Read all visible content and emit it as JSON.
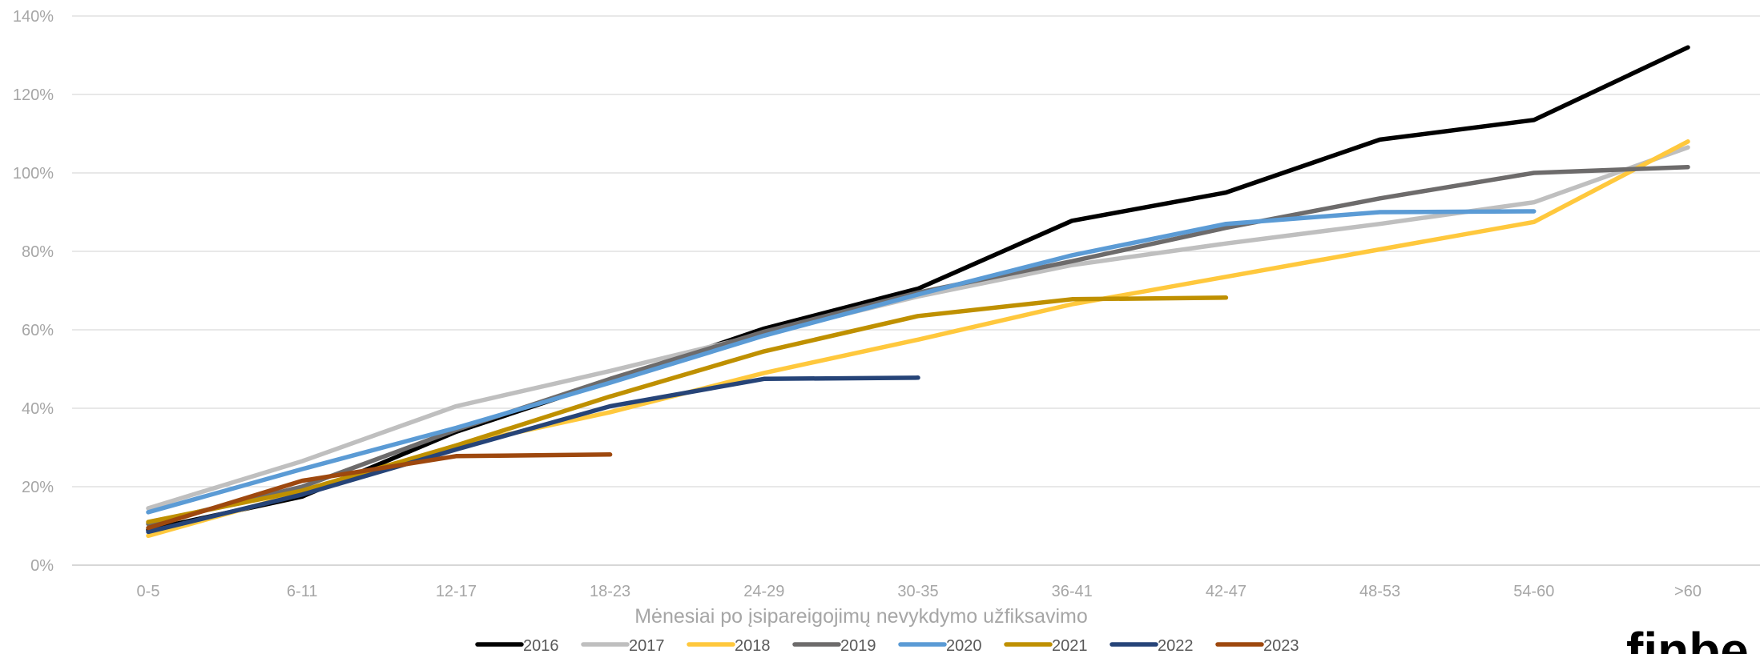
{
  "chart_data": {
    "type": "line",
    "title": "",
    "xlabel": "Mėnesiai po įsipareigojimų nevykdymo užfiksavimo",
    "ylabel": "",
    "categories": [
      "0-5",
      "6-11",
      "12-17",
      "18-23",
      "24-29",
      "30-35",
      "36-41",
      "42-47",
      "48-53",
      "54-60",
      ">60"
    ],
    "ylim": [
      0,
      1.4
    ],
    "yticks": [
      "0%",
      "20%",
      "40%",
      "60%",
      "80%",
      "100%",
      "120%",
      "140%"
    ],
    "grid": true,
    "legend_position": "bottom",
    "series": [
      {
        "name": "2016",
        "color": "#000000",
        "values": [
          0.09,
          0.175,
          0.34,
          0.47,
          0.603,
          0.705,
          0.878,
          0.95,
          1.085,
          1.135,
          1.32
        ]
      },
      {
        "name": "2017",
        "color": "#bfbfbf",
        "values": [
          0.145,
          0.265,
          0.405,
          0.495,
          0.59,
          0.685,
          0.765,
          0.82,
          0.87,
          0.925,
          1.065
        ]
      },
      {
        "name": "2018",
        "color": "#ffc83d",
        "values": [
          0.075,
          0.185,
          0.305,
          0.39,
          0.49,
          0.575,
          0.665,
          0.735,
          0.805,
          0.875,
          1.08
        ]
      },
      {
        "name": "2019",
        "color": "#6d6b6b",
        "values": [
          0.105,
          0.2,
          0.345,
          0.475,
          0.595,
          0.695,
          0.775,
          0.86,
          0.935,
          1.0,
          1.015
        ]
      },
      {
        "name": "2020",
        "color": "#5b9bd5",
        "values": [
          0.135,
          0.245,
          0.35,
          0.465,
          0.585,
          0.69,
          0.79,
          0.87,
          0.9,
          0.902,
          null
        ]
      },
      {
        "name": "2021",
        "color": "#bf9000",
        "values": [
          0.11,
          0.19,
          0.305,
          0.43,
          0.545,
          0.635,
          0.678,
          0.682,
          null,
          null,
          null
        ]
      },
      {
        "name": "2022",
        "color": "#264478",
        "values": [
          0.085,
          0.18,
          0.295,
          0.405,
          0.475,
          0.478,
          null,
          null,
          null,
          null,
          null
        ]
      },
      {
        "name": "2023",
        "color": "#9e480e",
        "values": [
          0.095,
          0.215,
          0.278,
          0.282,
          null,
          null,
          null,
          null,
          null,
          null,
          null
        ]
      }
    ]
  },
  "logo": {
    "text": "finbe"
  }
}
